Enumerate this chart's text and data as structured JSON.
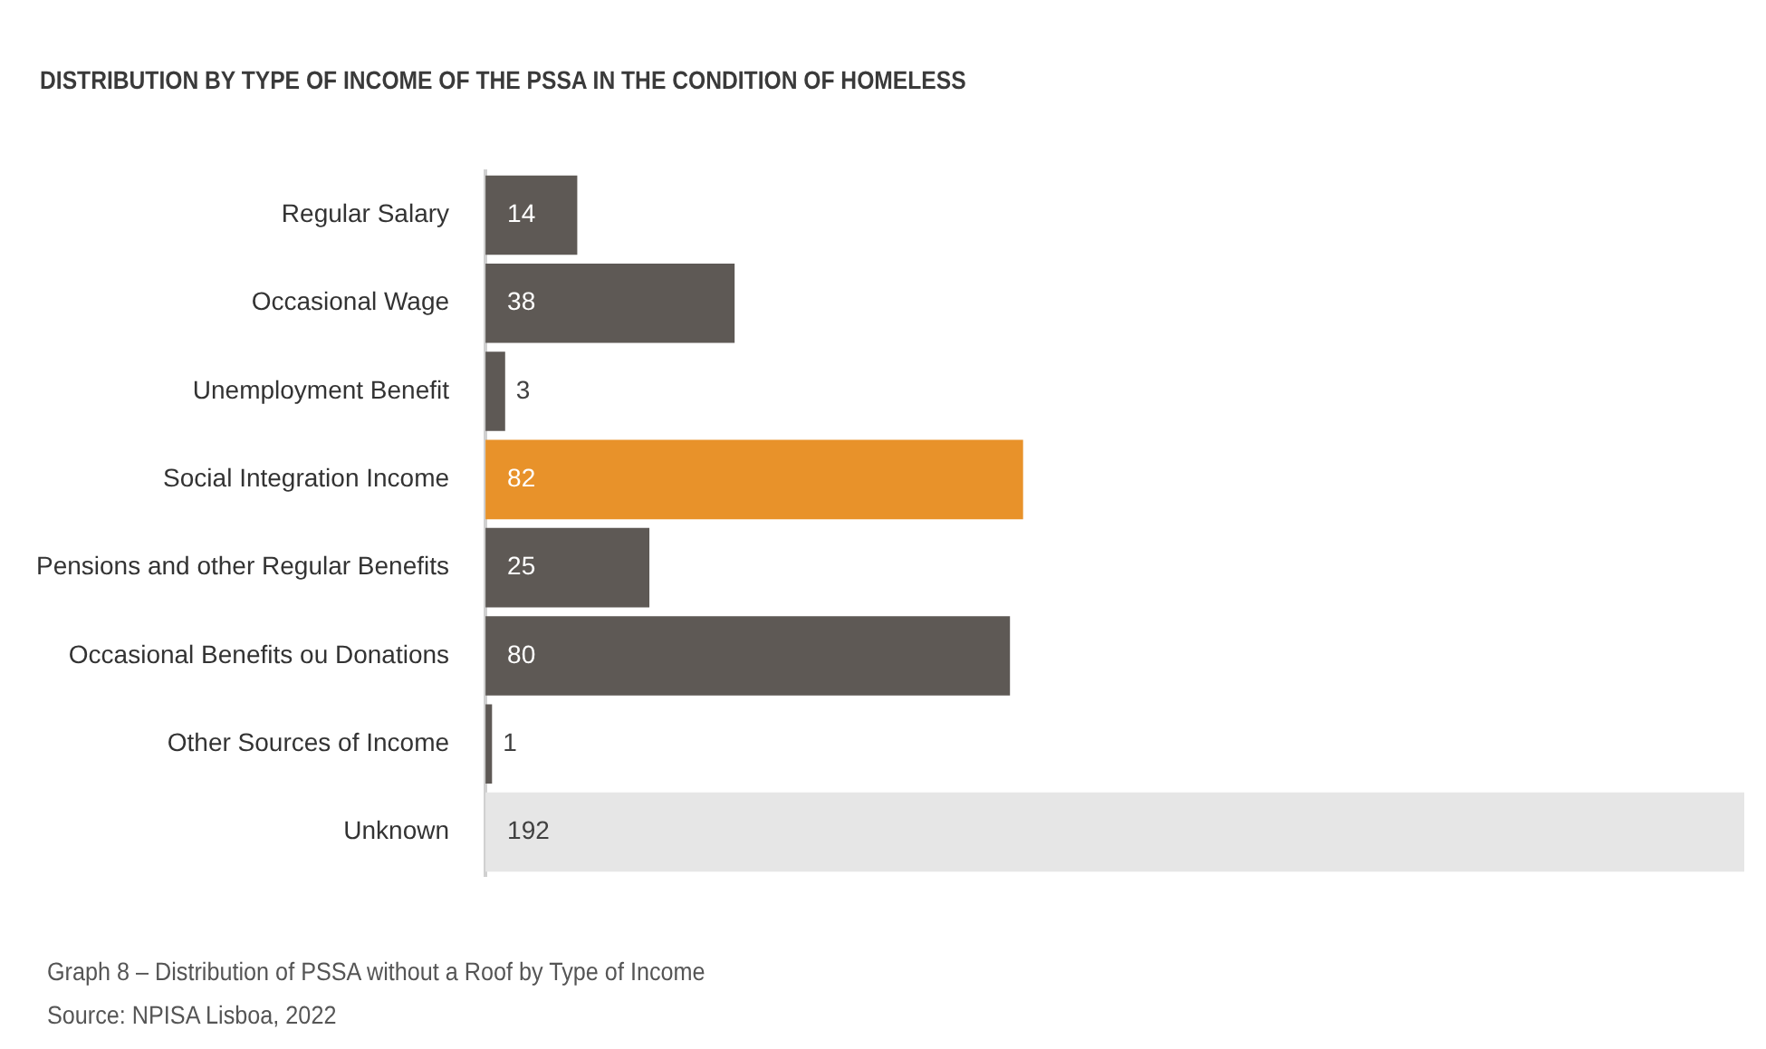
{
  "chart_data": {
    "type": "bar",
    "orientation": "horizontal",
    "title": "DISTRIBUTION BY TYPE OF INCOME OF THE PSSA IN THE CONDITION OF HOMELESS",
    "categories": [
      "Regular Salary",
      "Occasional Wage",
      "Unemployment Benefit",
      "Social Integration Income",
      "Pensions and other Regular Benefits",
      "Occasional Benefits ou Donations",
      "Other Sources of Income",
      "Unknown"
    ],
    "values": [
      14,
      38,
      3,
      82,
      25,
      80,
      1,
      192
    ],
    "colors": [
      "#5e5955",
      "#5e5955",
      "#5e5955",
      "#e8922a",
      "#5e5955",
      "#5e5955",
      "#5e5955",
      "#e6e6e6"
    ],
    "xlim": [
      0,
      192
    ],
    "tick_labels": "y",
    "grid": false,
    "legend": false,
    "data_labels": true,
    "annotations": [
      "Graph 8 – Distribution of PSSA without a Roof by Type of Income",
      "Source: NPISA Lisboa, 2022"
    ]
  }
}
